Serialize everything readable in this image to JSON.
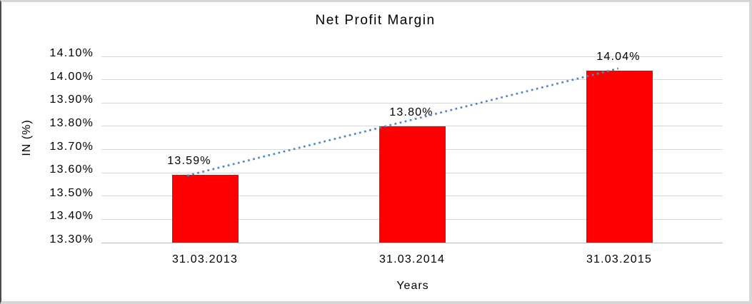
{
  "chart_data": {
    "type": "bar",
    "title": "Net Profit Margin",
    "xlabel": "Years",
    "ylabel": "IN (%)",
    "categories": [
      "31.03.2013",
      "31.03.2014",
      "31.03.2015"
    ],
    "values": [
      13.59,
      13.8,
      14.04
    ],
    "data_labels": [
      "13.59%",
      "13.80%",
      "14.04%"
    ],
    "ylim": [
      13.3,
      14.1
    ],
    "ytick_step": 0.1,
    "ytick_labels": [
      "13.30%",
      "13.40%",
      "13.50%",
      "13.60%",
      "13.70%",
      "13.80%",
      "13.90%",
      "14.00%",
      "14.10%"
    ],
    "grid": true,
    "legend": false,
    "bar_color": "#ff0000",
    "gridline_color": "#d9d9d9",
    "axis_line_color": "#bfbfbf",
    "text_color": "#000000",
    "trendline": {
      "type": "linear",
      "style": "dotted",
      "color": "#4e86c8",
      "start": {
        "x_frac": 0.138,
        "value": 13.588
      },
      "end": {
        "x_frac": 0.832,
        "value": 14.048
      }
    }
  }
}
